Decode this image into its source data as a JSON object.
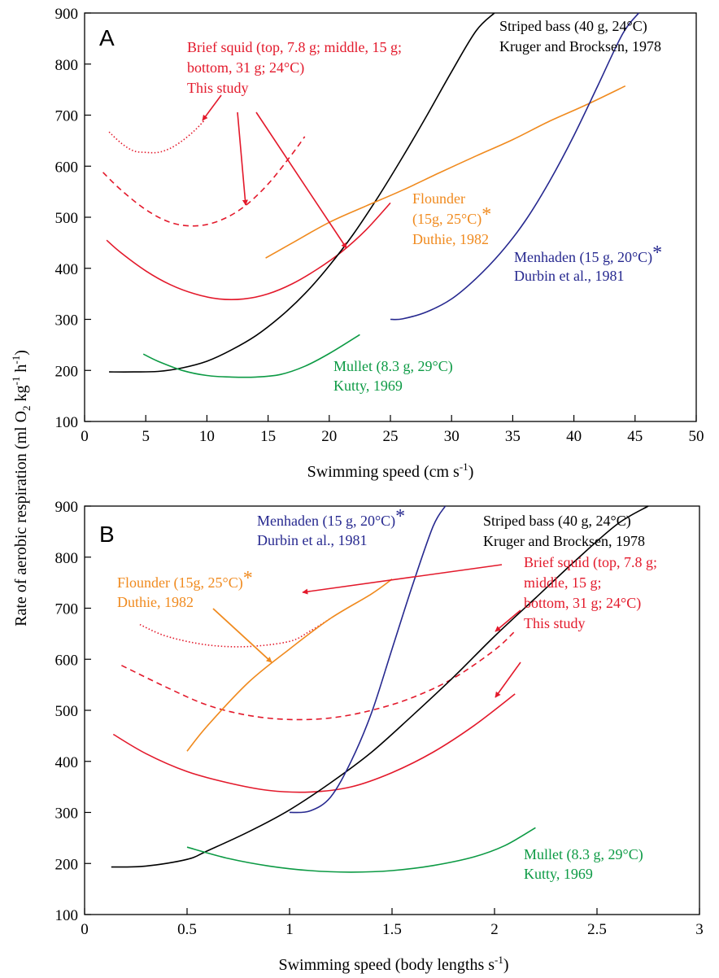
{
  "y_axis_label": "Rate of aerobic respiration (ml O2 kg-1 h-1)",
  "colors": {
    "squid": "#e3192b",
    "striped_bass": "#000000",
    "flounder": "#f08a1e",
    "menhaden": "#26288f",
    "mullet": "#0c9a44"
  },
  "chart_data": [
    {
      "panel": "A",
      "type": "line",
      "xlabel": "Swimming speed (cm s-1)",
      "xlim": [
        0,
        50
      ],
      "ylim": [
        100,
        900
      ],
      "xticks": [
        0,
        5,
        10,
        15,
        20,
        25,
        30,
        35,
        40,
        45,
        50
      ],
      "yticks": [
        100,
        200,
        300,
        400,
        500,
        600,
        700,
        800,
        900
      ],
      "grid": false,
      "series": [
        {
          "key": "squid_top",
          "style": "dotted",
          "color_key": "squid",
          "x": [
            2,
            3,
            4,
            5,
            6,
            7,
            8,
            9,
            9.8
          ],
          "y": [
            667,
            645,
            630,
            627,
            627,
            635,
            650,
            670,
            690
          ]
        },
        {
          "key": "squid_middle",
          "style": "dashed",
          "color_key": "squid",
          "x": [
            1.5,
            3,
            5,
            7,
            9,
            11,
            13,
            15,
            17,
            18
          ],
          "y": [
            588,
            553,
            515,
            490,
            483,
            493,
            520,
            565,
            625,
            658
          ]
        },
        {
          "key": "squid_bottom",
          "style": "solid",
          "color_key": "squid",
          "x": [
            1.8,
            3,
            5,
            7,
            9,
            11,
            13,
            15,
            17,
            19,
            21,
            23,
            25
          ],
          "y": [
            455,
            430,
            395,
            368,
            350,
            340,
            340,
            350,
            370,
            398,
            432,
            475,
            528
          ]
        },
        {
          "key": "striped_bass",
          "style": "solid",
          "color_key": "striped_bass",
          "x": [
            2,
            4,
            6,
            8,
            10,
            12,
            14,
            16,
            18,
            20,
            22,
            24,
            26,
            28,
            30,
            32,
            33.5
          ],
          "y": [
            197,
            197,
            198,
            205,
            218,
            240,
            268,
            305,
            350,
            405,
            468,
            540,
            618,
            700,
            785,
            865,
            900
          ]
        },
        {
          "key": "flounder",
          "style": "solid",
          "color_key": "flounder",
          "x": [
            14.8,
            17,
            20,
            23,
            26,
            29,
            32,
            35,
            38,
            41,
            44.2
          ],
          "y": [
            420,
            450,
            490,
            522,
            553,
            587,
            620,
            652,
            688,
            720,
            757
          ]
        },
        {
          "key": "menhaden",
          "style": "solid",
          "color_key": "menhaden",
          "x": [
            25,
            26,
            28,
            30,
            32,
            34,
            36,
            38,
            40,
            42,
            44,
            45.3
          ],
          "y": [
            300,
            301,
            315,
            340,
            380,
            430,
            492,
            570,
            660,
            760,
            860,
            900
          ]
        },
        {
          "key": "mullet",
          "style": "solid",
          "color_key": "mullet",
          "x": [
            4.8,
            6,
            8,
            10,
            12,
            14,
            16,
            18,
            20,
            22.5
          ],
          "y": [
            232,
            218,
            200,
            190,
            187,
            187,
            192,
            208,
            233,
            270
          ]
        }
      ],
      "annotations": [
        {
          "key": "bass",
          "color_key": "striped_bass",
          "lines": [
            "Striped bass (40 g, 24°C)",
            "Kruger and Brocksen, 1978"
          ]
        },
        {
          "key": "squid",
          "color_key": "squid",
          "lines": [
            "Brief squid (top, 7.8 g; middle, 15 g;",
            "bottom, 31 g; 24°C)",
            "This study"
          ]
        },
        {
          "key": "flounder",
          "color_key": "flounder",
          "lines": [
            "Flounder",
            "(15g, 25°C)",
            "Duthie, 1982"
          ],
          "asterisk": "*"
        },
        {
          "key": "menhaden",
          "color_key": "menhaden",
          "lines": [
            "Menhaden (15 g, 20°C)",
            "Durbin et al., 1981"
          ],
          "asterisk": "*"
        },
        {
          "key": "mullet",
          "color_key": "mullet",
          "lines": [
            "Mullet (8.3 g, 29°C)",
            "Kutty, 1969"
          ]
        }
      ]
    },
    {
      "panel": "B",
      "type": "line",
      "xlabel": "Swimming speed (body lengths s-1)",
      "xlim": [
        0,
        3
      ],
      "ylim": [
        100,
        900
      ],
      "xticks": [
        0,
        0.5,
        1,
        1.5,
        2,
        2.5,
        3
      ],
      "xtick_labels": [
        "0",
        "0.5",
        "1",
        "1.5",
        "2",
        "2.5",
        "3"
      ],
      "yticks": [
        100,
        200,
        300,
        400,
        500,
        600,
        700,
        800,
        900
      ],
      "grid": false,
      "series": [
        {
          "key": "squid_top",
          "style": "dotted",
          "color_key": "squid",
          "x": [
            0.27,
            0.4,
            0.6,
            0.8,
            1.0,
            1.1,
            1.2
          ],
          "y": [
            668,
            645,
            628,
            625,
            635,
            655,
            680
          ]
        },
        {
          "key": "squid_middle",
          "style": "dashed",
          "color_key": "squid",
          "x": [
            0.18,
            0.4,
            0.6,
            0.8,
            1.0,
            1.2,
            1.4,
            1.6,
            1.8,
            2.0,
            2.1
          ],
          "y": [
            588,
            545,
            510,
            490,
            482,
            485,
            500,
            525,
            563,
            618,
            655
          ]
        },
        {
          "key": "squid_bottom",
          "style": "solid",
          "color_key": "squid",
          "x": [
            0.14,
            0.3,
            0.5,
            0.7,
            0.9,
            1.1,
            1.3,
            1.5,
            1.7,
            1.9,
            2.1
          ],
          "y": [
            453,
            415,
            380,
            358,
            343,
            340,
            350,
            378,
            418,
            470,
            532
          ]
        },
        {
          "key": "striped_bass",
          "style": "solid",
          "color_key": "striped_bass",
          "x": [
            0.13,
            0.3,
            0.5,
            0.6,
            0.8,
            1.0,
            1.2,
            1.4,
            1.6,
            1.8,
            2.0,
            2.2,
            2.4,
            2.6,
            2.75
          ],
          "y": [
            193,
            195,
            208,
            225,
            262,
            305,
            358,
            418,
            490,
            565,
            645,
            720,
            795,
            865,
            900
          ]
        },
        {
          "key": "flounder",
          "style": "solid",
          "color_key": "flounder",
          "x": [
            0.5,
            0.6,
            0.8,
            1.0,
            1.2,
            1.4,
            1.5
          ],
          "y": [
            420,
            470,
            555,
            620,
            680,
            728,
            757
          ]
        },
        {
          "key": "menhaden",
          "style": "solid",
          "color_key": "menhaden",
          "x": [
            1.0,
            1.1,
            1.2,
            1.3,
            1.4,
            1.5,
            1.6,
            1.7,
            1.76
          ],
          "y": [
            300,
            303,
            330,
            400,
            495,
            620,
            745,
            860,
            900
          ]
        },
        {
          "key": "mullet",
          "style": "solid",
          "color_key": "mullet",
          "x": [
            0.5,
            0.7,
            0.9,
            1.1,
            1.3,
            1.5,
            1.7,
            1.9,
            2.05,
            2.2
          ],
          "y": [
            232,
            210,
            195,
            186,
            183,
            186,
            196,
            213,
            235,
            270
          ]
        }
      ],
      "annotations": [
        {
          "key": "menhaden",
          "color_key": "menhaden",
          "lines": [
            "Menhaden (15 g, 20°C)",
            "Durbin et al., 1981"
          ],
          "asterisk": "*"
        },
        {
          "key": "bass",
          "color_key": "striped_bass",
          "lines": [
            "Striped bass (40 g, 24°C)",
            "Kruger and Brocksen, 1978"
          ]
        },
        {
          "key": "flounder",
          "color_key": "flounder",
          "lines": [
            "Flounder (15g, 25°C)",
            "Duthie, 1982"
          ],
          "asterisk": "*"
        },
        {
          "key": "squid",
          "color_key": "squid",
          "lines": [
            "Brief squid (top, 7.8 g;",
            "middle, 15 g;",
            "bottom, 31 g; 24°C)",
            "This study"
          ]
        },
        {
          "key": "mullet",
          "color_key": "mullet",
          "lines": [
            "Mullet (8.3 g, 29°C)",
            "Kutty, 1969"
          ]
        }
      ]
    }
  ]
}
